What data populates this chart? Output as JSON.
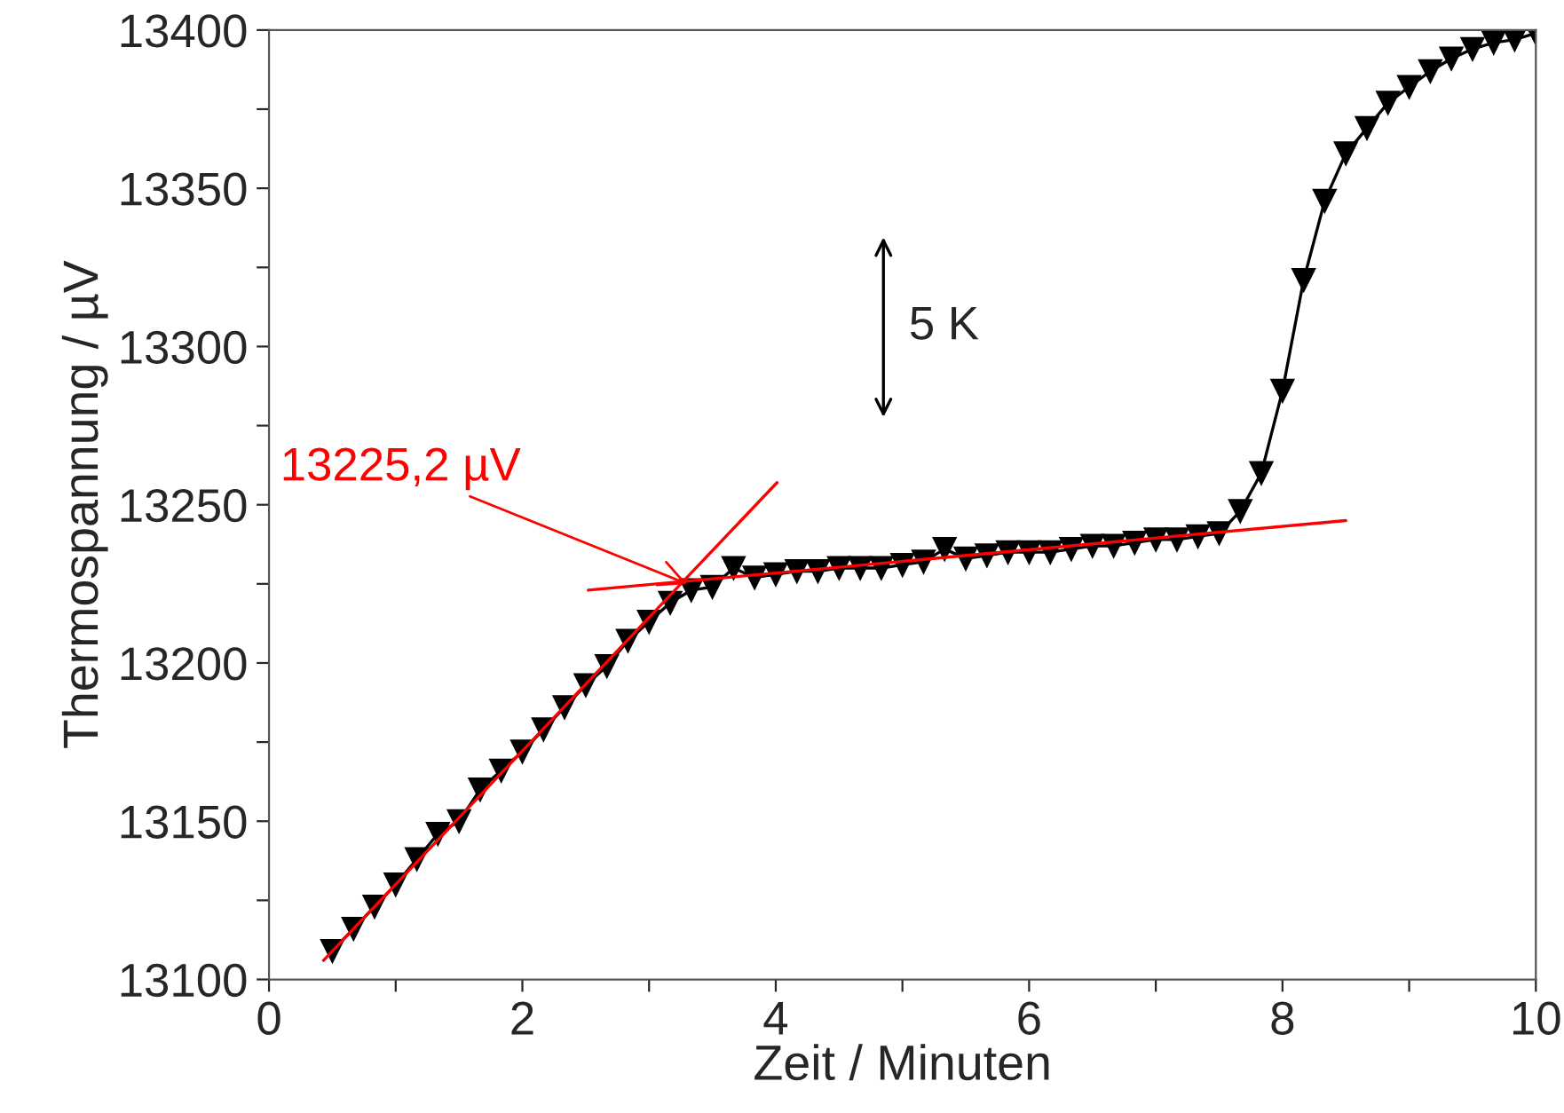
{
  "chart_data": {
    "type": "line",
    "xlabel": "Zeit / Minuten",
    "ylabel": "Thermospannung / µV",
    "xlim": [
      0,
      10
    ],
    "ylim": [
      13100,
      13400
    ],
    "xticks": [
      0,
      {
        "value": 1,
        "label": null
      },
      2,
      {
        "value": 3,
        "label": null
      },
      4,
      {
        "value": 5,
        "label": null
      },
      6,
      {
        "value": 7,
        "label": null
      },
      8,
      {
        "value": 9,
        "label": null
      },
      10
    ],
    "yticks": [
      13100,
      {
        "value": 13125,
        "label": null
      },
      13150,
      {
        "value": 13175,
        "label": null
      },
      13200,
      {
        "value": 13225,
        "label": null
      },
      13250,
      {
        "value": 13275,
        "label": null
      },
      13300,
      {
        "value": 13325,
        "label": null
      },
      13350,
      {
        "value": 13375,
        "label": null
      },
      13400
    ],
    "grid": false,
    "legend": false,
    "series": [
      {
        "color": "#000000",
        "marker": "triangle",
        "line_style": "solid",
        "x": [
          0.5,
          0.667,
          0.833,
          1.0,
          1.167,
          1.333,
          1.5,
          1.667,
          1.833,
          2.0,
          2.167,
          2.333,
          2.5,
          2.667,
          2.833,
          3.0,
          3.167,
          3.333,
          3.5,
          3.667,
          3.833,
          4.0,
          4.167,
          4.333,
          4.5,
          4.667,
          4.833,
          5.0,
          5.167,
          5.333,
          5.5,
          5.667,
          5.833,
          6.0,
          6.167,
          6.333,
          6.5,
          6.667,
          6.833,
          7.0,
          7.167,
          7.333,
          7.5,
          7.667,
          7.833,
          8.0,
          8.167,
          8.333,
          8.5,
          8.667,
          8.833,
          9.0,
          9.167,
          9.333,
          9.5,
          9.667,
          9.833,
          10.0
        ],
        "values": [
          13109,
          13116,
          13123,
          13130,
          13138,
          13146,
          13150,
          13160,
          13166,
          13172,
          13179,
          13186,
          13193,
          13199,
          13207,
          13213,
          13219,
          13223,
          13224,
          13230,
          13227,
          13228,
          13229,
          13229,
          13230,
          13230,
          13230,
          13231,
          13232,
          13236,
          13233,
          13234,
          13235,
          13235,
          13235,
          13236,
          13237,
          13237,
          13238,
          13239,
          13239,
          13240,
          13241,
          13248,
          13260,
          13286,
          13321,
          13346,
          13361,
          13369,
          13377,
          13382,
          13387,
          13391,
          13394,
          13396,
          13397,
          13399
        ]
      },
      {
        "color": "#ff0000",
        "marker": "none",
        "line_style": "solid",
        "x": [
          0.43,
          4.01
        ],
        "values": [
          13106,
          13257
        ]
      },
      {
        "color": "#ff0000",
        "marker": "none",
        "line_style": "solid",
        "x": [
          2.52,
          8.5
        ],
        "values": [
          13223,
          13245
        ]
      }
    ],
    "annotations": [
      {
        "text": "13225,2 µV",
        "x": 3.3,
        "y": 13225
      },
      "5 K"
    ]
  }
}
